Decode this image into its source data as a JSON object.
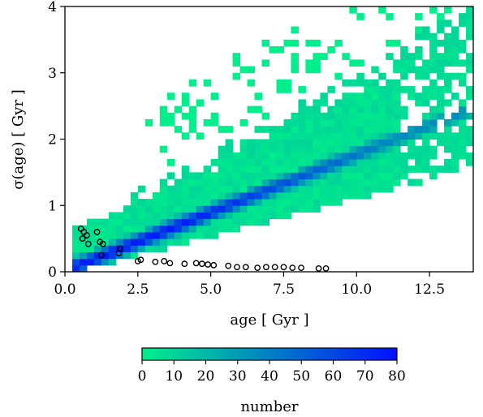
{
  "chart_data": {
    "type": "heatmap",
    "xlabel": "age [ Gyr ]",
    "ylabel": "σ(age) [ Gyr ]",
    "xlim": [
      0,
      14
    ],
    "ylim": [
      0,
      4
    ],
    "xticks": [
      0.0,
      2.5,
      5.0,
      7.5,
      10.0,
      12.5
    ],
    "xtick_labels": [
      "0.0",
      "2.5",
      "5.0",
      "7.5",
      "10.0",
      "12.5"
    ],
    "yticks": [
      0,
      1,
      2,
      3,
      4
    ],
    "ytick_labels": [
      "0",
      "1",
      "2",
      "3",
      "4"
    ],
    "bin_width_x": 0.25,
    "bin_width_y": 0.1,
    "description_of_density": "2D histogram of stellar ages vs age uncertainty; density peaks along sigma ≈ 0.18 × age",
    "colorbar": {
      "label": "number",
      "range": [
        0,
        80
      ],
      "ticks": [
        "0",
        "10",
        "20",
        "30",
        "40",
        "50",
        "60",
        "70",
        "80"
      ],
      "color_min": "#00f08a",
      "color_max": "#0010ff"
    },
    "outlier_points": [
      {
        "x": 0.55,
        "y": 0.65
      },
      {
        "x": 0.65,
        "y": 0.6
      },
      {
        "x": 0.75,
        "y": 0.55
      },
      {
        "x": 0.6,
        "y": 0.5
      },
      {
        "x": 0.8,
        "y": 0.42
      },
      {
        "x": 1.1,
        "y": 0.6
      },
      {
        "x": 1.2,
        "y": 0.45
      },
      {
        "x": 1.3,
        "y": 0.42
      },
      {
        "x": 1.25,
        "y": 0.25
      },
      {
        "x": 1.9,
        "y": 0.35
      },
      {
        "x": 1.85,
        "y": 0.28
      },
      {
        "x": 2.6,
        "y": 0.18
      },
      {
        "x": 2.5,
        "y": 0.16
      },
      {
        "x": 3.1,
        "y": 0.15
      },
      {
        "x": 3.4,
        "y": 0.16
      },
      {
        "x": 3.6,
        "y": 0.13
      },
      {
        "x": 4.1,
        "y": 0.12
      },
      {
        "x": 4.5,
        "y": 0.13
      },
      {
        "x": 4.7,
        "y": 0.12
      },
      {
        "x": 4.9,
        "y": 0.11
      },
      {
        "x": 5.1,
        "y": 0.1
      },
      {
        "x": 5.6,
        "y": 0.09
      },
      {
        "x": 5.9,
        "y": 0.07
      },
      {
        "x": 6.2,
        "y": 0.07
      },
      {
        "x": 6.6,
        "y": 0.06
      },
      {
        "x": 6.9,
        "y": 0.07
      },
      {
        "x": 7.2,
        "y": 0.07
      },
      {
        "x": 7.5,
        "y": 0.07
      },
      {
        "x": 7.8,
        "y": 0.06
      },
      {
        "x": 8.1,
        "y": 0.06
      },
      {
        "x": 8.7,
        "y": 0.05
      },
      {
        "x": 8.95,
        "y": 0.05
      }
    ],
    "colors": {
      "low": "#00f08a",
      "high": "#0010ff",
      "background": "#ffffff"
    }
  }
}
